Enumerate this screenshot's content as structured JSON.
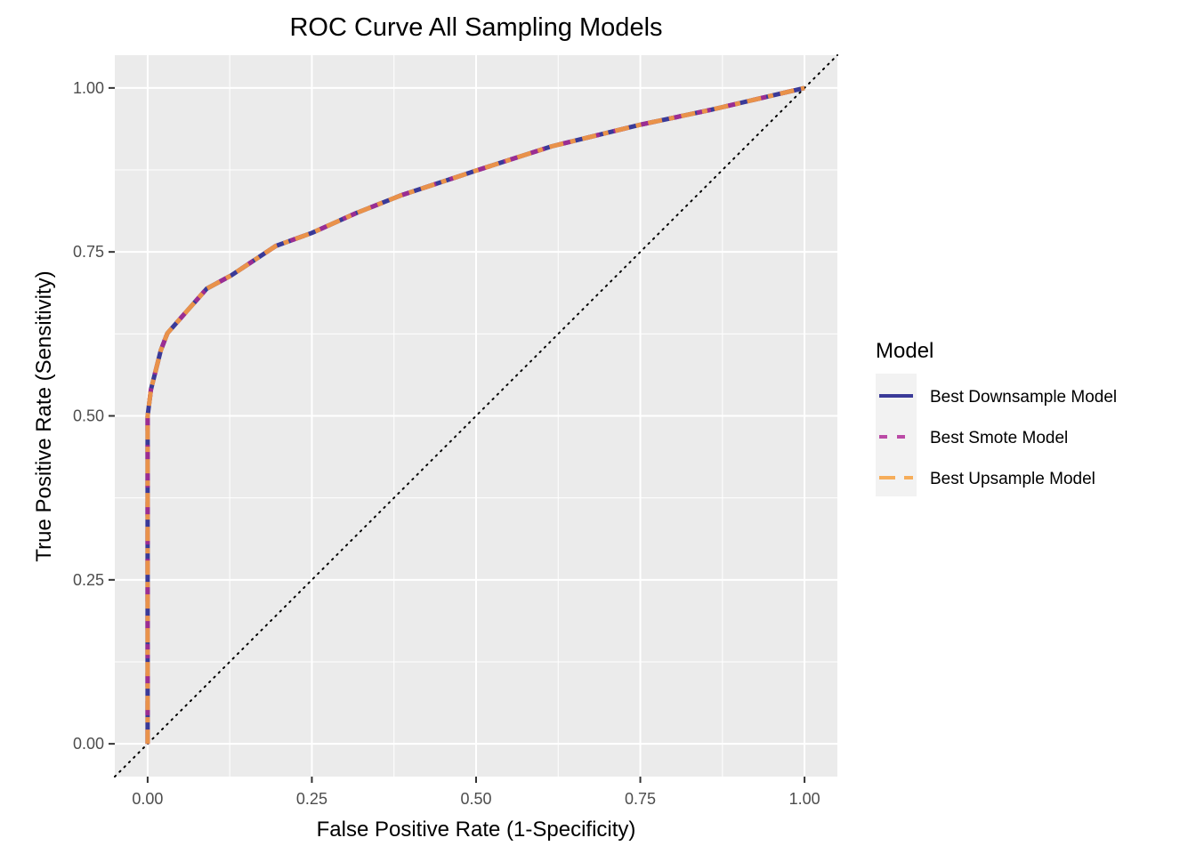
{
  "chart_data": {
    "type": "line",
    "title": "ROC Curve All Sampling Models",
    "xlabel": "False Positive Rate (1-Specificity)",
    "ylabel": "True Positive Rate (Sensitivity)",
    "xlim": [
      -0.05,
      1.05
    ],
    "ylim": [
      -0.05,
      1.05
    ],
    "x_ticks": [
      0,
      0.25,
      0.5,
      0.75,
      1.0
    ],
    "x_tick_labels": [
      "0.00",
      "0.25",
      "0.50",
      "0.75",
      "1.00"
    ],
    "y_ticks": [
      0,
      0.25,
      0.5,
      0.75,
      1.0
    ],
    "y_tick_labels": [
      "0.00",
      "0.25",
      "0.50",
      "0.75",
      "1.00"
    ],
    "grid": true,
    "reference_line": {
      "type": "diagonal",
      "style": "dotted",
      "color": "#000000",
      "from": [
        -0.05,
        -0.05
      ],
      "to": [
        1.05,
        1.05
      ]
    },
    "legend": {
      "title": "Model",
      "position": "right",
      "entries": [
        {
          "label": "Best Downsample Model",
          "color": "#3a3a98",
          "linetype": "solid"
        },
        {
          "label": "Best Smote Model",
          "color": "#bb4aa6",
          "linetype": "dashed"
        },
        {
          "label": "Best Upsample Model",
          "color": "#f6ad5a",
          "linetype": "dashed"
        }
      ]
    },
    "series": [
      {
        "name": "Best Downsample Model",
        "color": "#3a3a98",
        "linetype": "solid",
        "x": [
          0,
          0,
          0.0,
          0.005,
          0.02,
          0.03,
          0.06,
          0.09,
          0.127,
          0.195,
          0.25,
          0.317,
          0.385,
          0.5,
          0.615,
          0.75,
          0.859,
          1.0
        ],
        "y": [
          0,
          0.25,
          0.5,
          0.54,
          0.6,
          0.626,
          0.66,
          0.694,
          0.714,
          0.759,
          0.779,
          0.809,
          0.836,
          0.874,
          0.911,
          0.944,
          0.967,
          1.0
        ]
      },
      {
        "name": "Best Smote Model",
        "color": "#9b2d92",
        "linetype": "dashed",
        "x": [
          0,
          0,
          0.0,
          0.005,
          0.02,
          0.03,
          0.06,
          0.09,
          0.127,
          0.195,
          0.25,
          0.317,
          0.385,
          0.5,
          0.615,
          0.75,
          0.859,
          1.0
        ],
        "y": [
          0,
          0.25,
          0.5,
          0.54,
          0.6,
          0.626,
          0.66,
          0.694,
          0.714,
          0.759,
          0.779,
          0.809,
          0.836,
          0.874,
          0.911,
          0.944,
          0.967,
          1.0
        ]
      },
      {
        "name": "Best Upsample Model",
        "color": "#e9924a",
        "linetype": "dashed",
        "x": [
          0,
          0,
          0.0,
          0.005,
          0.02,
          0.03,
          0.06,
          0.09,
          0.127,
          0.195,
          0.25,
          0.317,
          0.385,
          0.5,
          0.615,
          0.75,
          0.859,
          1.0
        ],
        "y": [
          0,
          0.25,
          0.5,
          0.54,
          0.6,
          0.626,
          0.66,
          0.694,
          0.714,
          0.759,
          0.779,
          0.809,
          0.836,
          0.874,
          0.911,
          0.944,
          0.967,
          1.0
        ]
      }
    ]
  },
  "colors": {
    "panel_background": "#ebebeb",
    "grid": "#ffffff",
    "legend_key_background": "#f2f2f2",
    "tick": "#333333"
  }
}
